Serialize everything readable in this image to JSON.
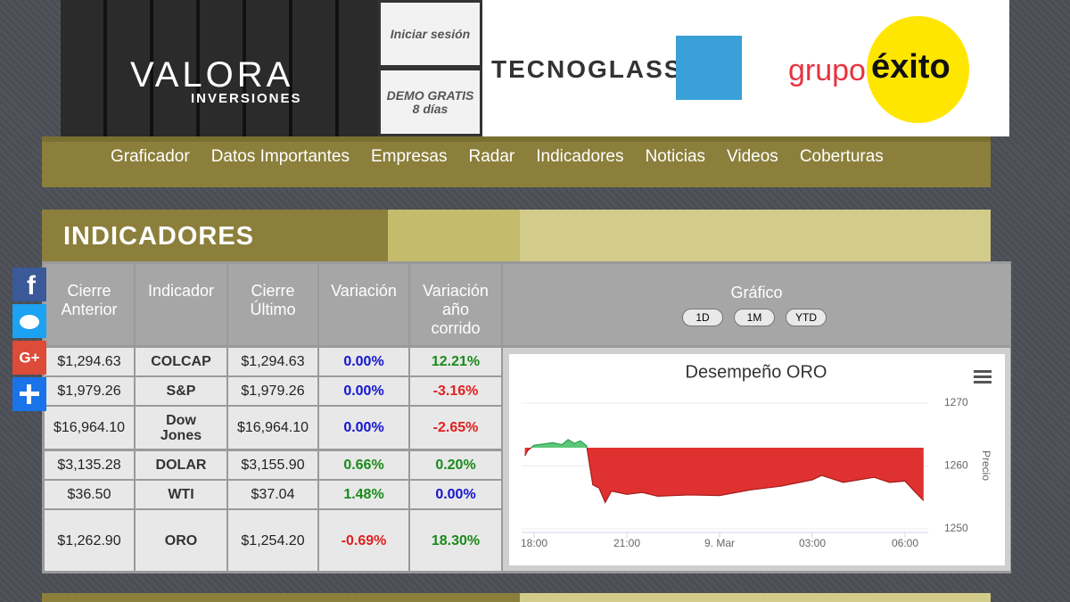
{
  "header": {
    "brand": "VALORA",
    "brand_sub": "INVERSIONES",
    "login": "Iniciar sesión",
    "demo": [
      "DEMO GRATIS",
      "8 días"
    ],
    "sponsor1": "TECNOGLASS",
    "sponsor2_a": "grupo",
    "sponsor2_b": "éxito"
  },
  "nav": [
    "Graficador",
    "Datos Importantes",
    "Empresas",
    "Radar",
    "Indicadores",
    "Noticias",
    "Videos",
    "Coberturas"
  ],
  "section_title": "INDICADORES",
  "share": {
    "facebook": "f",
    "google": "G+"
  },
  "table": {
    "headers": [
      "Cierre Anterior",
      "Indicador",
      "Cierre Último",
      "Variación",
      "Variación año corrido",
      "Gráfico"
    ],
    "rows": [
      [
        "$1,294.63",
        "COLCAP",
        "$1,294.63",
        "0.00%",
        "12.21%"
      ],
      [
        "$1,979.26",
        "S&P",
        "$1,979.26",
        "0.00%",
        "-3.16%"
      ],
      [
        "$16,964.10",
        "Dow Jones",
        "$16,964.10",
        "0.00%",
        "-2.65%"
      ],
      [
        "$3,135.28",
        "DOLAR",
        "$3,155.90",
        "0.66%",
        "0.20%"
      ],
      [
        "$36.50",
        "WTI",
        "$37.04",
        "1.48%",
        "0.00%"
      ],
      [
        "$1,262.90",
        "ORO",
        "$1,254.20",
        "-0.69%",
        "18.30%"
      ]
    ]
  },
  "range_buttons": [
    "1D",
    "1M",
    "YTD"
  ],
  "chart_data": {
    "type": "area",
    "title": "Desempeño ORO",
    "y_label": "Precio",
    "x": [
      17.7,
      17.8,
      18.0,
      18.3,
      18.6,
      18.9,
      19.1,
      19.3,
      19.5,
      19.7,
      19.8,
      19.9,
      20.1,
      20.3,
      20.5,
      21.0,
      21.5,
      22.0,
      23.0,
      24.0,
      25.0,
      26.0,
      27.0,
      27.3,
      28.0,
      28.5,
      29.0,
      29.5,
      30.0,
      30.3,
      30.6
    ],
    "values": [
      1261.6,
      1262.5,
      1263.3,
      1263.5,
      1263.7,
      1263.4,
      1264.2,
      1263.6,
      1264.0,
      1263.2,
      1260.0,
      1257.0,
      1256.5,
      1254.2,
      1256.0,
      1255.5,
      1255.8,
      1255.2,
      1255.4,
      1255.3,
      1256.2,
      1256.8,
      1257.8,
      1258.5,
      1257.4,
      1257.8,
      1258.2,
      1257.4,
      1257.6,
      1256.0,
      1254.5
    ],
    "threshold": 1262.9,
    "color_above": "#5cc878",
    "color_below": "#e03131",
    "xlim": [
      18,
      30
    ],
    "ylim": [
      1250,
      1270
    ],
    "xticks": [
      {
        "value": 18,
        "label": "18:00"
      },
      {
        "value": 21,
        "label": "21:00"
      },
      {
        "value": 24,
        "label": "9. Mar"
      },
      {
        "value": 27,
        "label": "03:00"
      },
      {
        "value": 30,
        "label": "06:00"
      }
    ],
    "yticks": [
      1250,
      1260,
      1270
    ]
  }
}
